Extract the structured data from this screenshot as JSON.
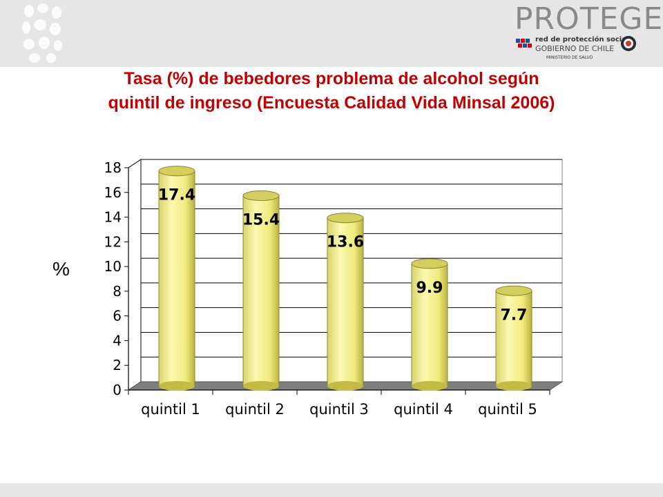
{
  "header": {
    "brand_name": "PROTEGE",
    "brand_line1": "red de protección social",
    "brand_line2": "GOBIERNO DE CHILE",
    "brand_line3": "MINISTERIO DE SALUD"
  },
  "title": {
    "line1": "Tasa (%) de bebedores problema de alcohol según",
    "line2": "quintil de ingreso (Encuesta Calidad Vida Minsal 2006)"
  },
  "colors": {
    "title": "#c00000",
    "bar_fill": "#f4f08a",
    "bar_shade": "#c9c24a",
    "floor": "#7f7f7f",
    "band": "#e6e6e6"
  },
  "chart_data": {
    "type": "bar",
    "title": "Tasa (%) de bebedores problema de alcohol según quintil de ingreso (Encuesta Calidad Vida Minsal 2006)",
    "categories": [
      "quintil 1",
      "quintil 2",
      "quintil 3",
      "quintil 4",
      "quintil 5"
    ],
    "values": [
      17.4,
      15.4,
      13.6,
      9.9,
      7.7
    ],
    "data_labels": [
      "17.4",
      "15.4",
      "13.6",
      "9.9",
      "7.7"
    ],
    "ylabel": "%",
    "xlabel": "",
    "ylim": [
      0,
      18
    ],
    "yticks": [
      0,
      2,
      4,
      6,
      8,
      10,
      12,
      14,
      16,
      18
    ],
    "grid": true,
    "legend": "none",
    "style": "3d-cylinder"
  }
}
